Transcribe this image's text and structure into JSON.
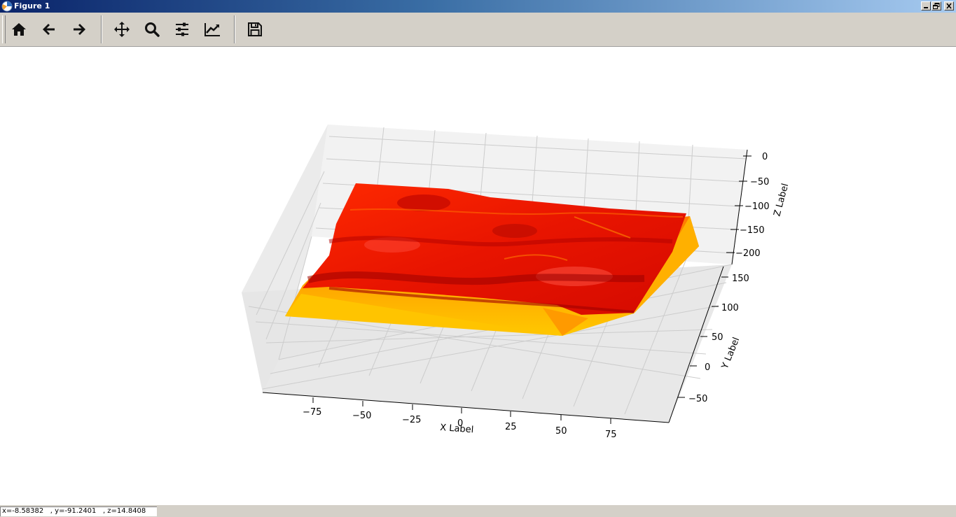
{
  "window": {
    "title": "Figure 1"
  },
  "toolbar": {
    "buttons": [
      {
        "name": "home",
        "icon": "home-icon"
      },
      {
        "name": "back",
        "icon": "arrow-left-icon"
      },
      {
        "name": "forward",
        "icon": "arrow-right-icon"
      },
      {
        "name": "pan",
        "icon": "move-icon"
      },
      {
        "name": "zoom",
        "icon": "search-icon"
      },
      {
        "name": "configure-subplots",
        "icon": "sliders-icon"
      },
      {
        "name": "edit-axes",
        "icon": "chart-line-icon"
      },
      {
        "name": "save",
        "icon": "save-icon"
      }
    ]
  },
  "plot": {
    "xlabel": "X Label",
    "ylabel": "Y Label",
    "zlabel": "Z Label",
    "xticks": [
      "−75",
      "−50",
      "−25",
      "0",
      "25",
      "50",
      "75"
    ],
    "yticks": [
      "150",
      "100",
      "50",
      "0",
      "−50"
    ],
    "zticks": [
      "0",
      "−50",
      "−100",
      "−150",
      "−200"
    ],
    "colors": {
      "surface_top": "#e00000",
      "surface_mid": "#ff3000",
      "surface_side": "#ffc000",
      "pane": "#f2f2f2",
      "grid": "#c8c8c8"
    }
  },
  "status": {
    "text": "x=-8.58382   , y=-91.2401   , z=14.8408"
  }
}
